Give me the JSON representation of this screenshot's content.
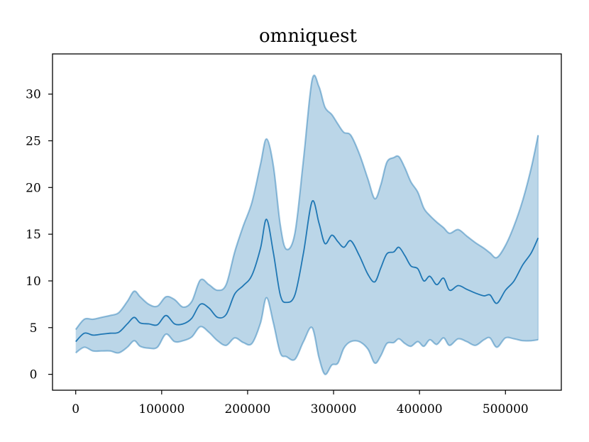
{
  "chart_data": {
    "type": "area",
    "title": "omniquest",
    "xlabel": "",
    "ylabel": "",
    "xlim": [
      -27000,
      565000
    ],
    "ylim": [
      -1.7,
      34.3
    ],
    "xticks": [
      0,
      100000,
      200000,
      300000,
      400000,
      500000
    ],
    "xtick_labels": [
      "0",
      "100000",
      "200000",
      "300000",
      "400000",
      "500000"
    ],
    "yticks": [
      0,
      5,
      10,
      15,
      20,
      25,
      30
    ],
    "ytick_labels": [
      "0",
      "5",
      "10",
      "15",
      "20",
      "25",
      "30"
    ],
    "grid": false,
    "legend": "none",
    "colors": {
      "line": "#1f77b4",
      "band": "#1f77b4"
    },
    "x": [
      0,
      10000,
      20000,
      30000,
      40000,
      50000,
      60000,
      68000,
      75000,
      85000,
      95000,
      105000,
      115000,
      125000,
      135000,
      145000,
      155000,
      165000,
      175000,
      185000,
      195000,
      205000,
      215000,
      222000,
      230000,
      238000,
      245000,
      255000,
      265000,
      275000,
      283000,
      290000,
      298000,
      305000,
      312000,
      320000,
      330000,
      340000,
      348000,
      355000,
      362000,
      370000,
      376000,
      383000,
      390000,
      398000,
      405000,
      412000,
      420000,
      428000,
      435000,
      445000,
      455000,
      465000,
      475000,
      482000,
      490000,
      500000,
      510000,
      520000,
      530000,
      538000
    ],
    "series": [
      {
        "mean": [
          3.5,
          4.4,
          4.2,
          4.3,
          4.4,
          4.5,
          5.4,
          6.1,
          5.5,
          5.4,
          5.3,
          6.3,
          5.4,
          5.4,
          6.0,
          7.5,
          7.1,
          6.1,
          6.4,
          8.6,
          9.5,
          10.6,
          13.5,
          16.6,
          13.0,
          8.5,
          7.7,
          8.5,
          13.0,
          18.5,
          16.2,
          14.0,
          14.9,
          14.2,
          13.6,
          14.3,
          12.7,
          10.7,
          9.9,
          11.4,
          12.9,
          13.1,
          13.6,
          12.7,
          11.6,
          11.3,
          10.0,
          10.5,
          9.6,
          10.3,
          9.0,
          9.5,
          9.1,
          8.7,
          8.4,
          8.5,
          7.6,
          9.0,
          10.0,
          11.7,
          13.0,
          14.6
        ],
        "upper": [
          4.8,
          5.9,
          5.9,
          6.1,
          6.3,
          6.6,
          7.8,
          8.9,
          8.3,
          7.5,
          7.3,
          8.3,
          8.0,
          7.2,
          7.8,
          10.1,
          9.6,
          9.0,
          9.6,
          13.1,
          15.9,
          18.4,
          22.5,
          25.2,
          22.3,
          16.0,
          13.4,
          15.1,
          23.0,
          31.5,
          30.8,
          28.6,
          27.8,
          26.8,
          25.9,
          25.6,
          23.6,
          20.9,
          18.8,
          20.3,
          22.7,
          23.2,
          23.3,
          22.1,
          20.6,
          19.5,
          17.8,
          17.0,
          16.3,
          15.7,
          15.1,
          15.5,
          14.8,
          14.1,
          13.5,
          13.0,
          12.5,
          13.8,
          15.9,
          18.6,
          22.1,
          25.6
        ],
        "lower": [
          2.3,
          2.9,
          2.5,
          2.5,
          2.5,
          2.3,
          2.9,
          3.6,
          3.0,
          2.8,
          2.9,
          4.3,
          3.5,
          3.6,
          4.0,
          5.1,
          4.5,
          3.6,
          3.1,
          3.9,
          3.4,
          3.3,
          5.5,
          8.2,
          5.5,
          2.3,
          1.9,
          1.6,
          3.5,
          5.0,
          1.8,
          0.0,
          1.0,
          1.2,
          2.8,
          3.5,
          3.5,
          2.7,
          1.2,
          2.0,
          3.3,
          3.4,
          3.8,
          3.3,
          3.0,
          3.5,
          3.0,
          3.7,
          3.2,
          3.9,
          3.1,
          3.8,
          3.5,
          3.1,
          3.7,
          3.9,
          2.9,
          3.9,
          3.8,
          3.6,
          3.6,
          3.7
        ]
      }
    ]
  }
}
